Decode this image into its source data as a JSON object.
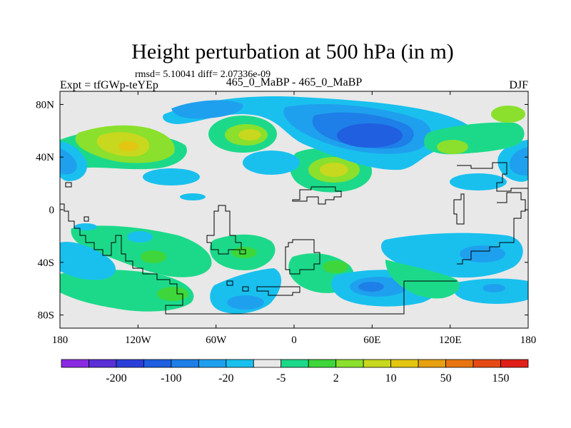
{
  "chart_data": {
    "type": "contour-map",
    "title": "Height perturbation at 500 hPa (in m)",
    "stats_line": "rmsd= 5.10041 diff= 2.07336e-09",
    "left_label": "Expt = tfGWp-teYEp",
    "center_label": "465_0_MaBP - 465_0_MaBP",
    "right_label": "DJF",
    "x_ticks": [
      {
        "lon": -180,
        "label": "180"
      },
      {
        "lon": -120,
        "label": "120W"
      },
      {
        "lon": -60,
        "label": "60W"
      },
      {
        "lon": 0,
        "label": "0"
      },
      {
        "lon": 60,
        "label": "60E"
      },
      {
        "lon": 120,
        "label": "120E"
      },
      {
        "lon": 180,
        "label": "180"
      }
    ],
    "y_ticks": [
      {
        "lat": 80,
        "label": "80N"
      },
      {
        "lat": 40,
        "label": "40N"
      },
      {
        "lat": 0,
        "label": "0"
      },
      {
        "lat": -40,
        "label": "40S"
      },
      {
        "lat": -80,
        "label": "80S"
      }
    ],
    "xlim": [
      -180,
      180
    ],
    "ylim": [
      -90,
      90
    ],
    "colorbar": {
      "colors": [
        "#8a2be2",
        "#5a2fd6",
        "#2a3fd9",
        "#1f5fe0",
        "#1e7fe8",
        "#1fa0ee",
        "#19c0ee",
        "#e8e8e8",
        "#1cd98a",
        "#3ed63a",
        "#8ae02c",
        "#c7d81e",
        "#e3c612",
        "#e6a010",
        "#e87512",
        "#e64a14",
        "#e02018"
      ],
      "labels": [
        {
          "after_bin": 1,
          "text": "-200"
        },
        {
          "after_bin": 3,
          "text": "-100"
        },
        {
          "after_bin": 5,
          "text": "-20"
        },
        {
          "after_bin": 7,
          "text": "-5"
        },
        {
          "after_bin": 9,
          "text": "2"
        },
        {
          "after_bin": 11,
          "text": "10"
        },
        {
          "after_bin": 13,
          "text": "50"
        },
        {
          "after_bin": 15,
          "text": "150"
        }
      ]
    },
    "anomaly_centers": [
      {
        "lon": -148,
        "lat": 50,
        "level": 13,
        "name": "anomaly-positive-northpacific"
      },
      {
        "lon": -140,
        "lat": 58,
        "level": 11,
        "name": "anomaly-positive-alaska"
      },
      {
        "lon": -35,
        "lat": 58,
        "level": 12,
        "name": "anomaly-positive-northatlantic"
      },
      {
        "lon": 32,
        "lat": 32,
        "level": 12,
        "name": "anomaly-positive-mediterranean"
      },
      {
        "lon": 150,
        "lat": 45,
        "level": 10,
        "name": "anomaly-positive-northwest-pacific"
      },
      {
        "lon": 165,
        "lat": 72,
        "level": 11,
        "name": "anomaly-positive-arctic-east"
      },
      {
        "lon": 60,
        "lat": 58,
        "level": 2,
        "name": "anomaly-negative-siberia"
      },
      {
        "lon": -160,
        "lat": 76,
        "level": 6,
        "name": "anomaly-negative-arctic-west"
      },
      {
        "lon": -175,
        "lat": 40,
        "level": 6,
        "name": "anomaly-negative-dateline"
      },
      {
        "lon": 175,
        "lat": 38,
        "level": 5,
        "name": "anomaly-negative-dateline-east"
      },
      {
        "lon": -30,
        "lat": 38,
        "level": 5,
        "name": "anomaly-negative-azores"
      },
      {
        "lon": 60,
        "lat": -63,
        "level": 5,
        "name": "anomaly-negative-southern-indian"
      },
      {
        "lon": 135,
        "lat": -35,
        "level": 6,
        "name": "anomaly-negative-australia"
      },
      {
        "lon": -25,
        "lat": -62,
        "level": 6,
        "name": "anomaly-negative-south-atlantic"
      },
      {
        "lon": -100,
        "lat": -50,
        "level": 10,
        "name": "anomaly-positive-southeast-pacific"
      },
      {
        "lon": -120,
        "lat": -18,
        "level": 9,
        "name": "anomaly-positive-south-pacific"
      },
      {
        "lon": 0,
        "lat": -40,
        "level": 9,
        "name": "anomaly-positive-south-atlantic"
      }
    ]
  }
}
